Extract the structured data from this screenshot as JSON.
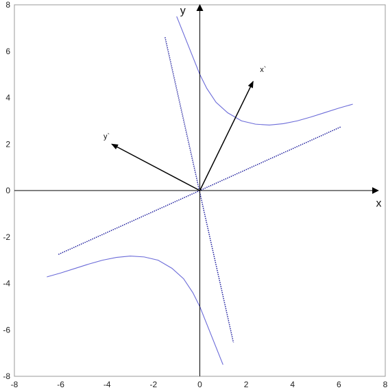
{
  "chart_data": {
    "type": "line",
    "xlim": [
      -8,
      8
    ],
    "ylim": [
      -8,
      8
    ],
    "xticks": [
      -8,
      -6,
      -4,
      -2,
      0,
      2,
      4,
      6,
      8
    ],
    "yticks": [
      -8,
      -6,
      -4,
      -2,
      0,
      2,
      4,
      6,
      8
    ],
    "xtick_labels": [
      "-8",
      "-6",
      "-4",
      "-2",
      "0",
      "2",
      "4",
      "6",
      "8"
    ],
    "ytick_labels": [
      "-8",
      "-6",
      "-4",
      "-2",
      "0",
      "2",
      "4",
      "6",
      "8"
    ],
    "grid": false,
    "axes_arrows": {
      "x": {
        "label": "x",
        "from": [
          -8,
          0
        ],
        "to": [
          7.7,
          0
        ]
      },
      "y": {
        "label": "y",
        "from": [
          0,
          -8
        ],
        "to": [
          0,
          8
        ]
      }
    },
    "rotated_axes": [
      {
        "label": "x`",
        "from": [
          0,
          0
        ],
        "to": [
          2.3,
          4.7
        ]
      },
      {
        "label": "y`",
        "from": [
          0,
          0
        ],
        "to": [
          -3.8,
          2.0
        ]
      }
    ],
    "asymptotes": [
      {
        "from": [
          -6.1,
          -2.75
        ],
        "to": [
          6.1,
          2.75
        ],
        "color": "#1a1a9c",
        "style": "dotted"
      },
      {
        "from": [
          -1.5,
          6.6
        ],
        "to": [
          1.45,
          -6.55
        ],
        "color": "#1a1a9c",
        "style": "dotted"
      }
    ],
    "series": [
      {
        "color": "#6a6ad8",
        "x": [
          -1.0,
          -0.6,
          -0.2,
          0.0,
          0.3,
          0.7,
          1.2,
          1.8,
          2.4,
          3.0,
          3.6,
          4.2,
          4.8,
          5.4,
          6.0,
          6.6
        ],
        "y": [
          7.5,
          6.5,
          5.5,
          5.0,
          4.4,
          3.8,
          3.35,
          3.0,
          2.86,
          2.82,
          2.88,
          3.0,
          3.17,
          3.36,
          3.55,
          3.72
        ]
      },
      {
        "color": "#6a6ad8",
        "x": [
          1.0,
          0.6,
          0.2,
          0.0,
          -0.3,
          -0.7,
          -1.2,
          -1.8,
          -2.4,
          -3.0,
          -3.6,
          -4.2,
          -4.8,
          -5.4,
          -6.0,
          -6.6
        ],
        "y": [
          -7.5,
          -6.5,
          -5.5,
          -5.0,
          -4.4,
          -3.8,
          -3.35,
          -3.0,
          -2.86,
          -2.82,
          -2.88,
          -3.0,
          -3.17,
          -3.36,
          -3.55,
          -3.72
        ]
      }
    ]
  }
}
